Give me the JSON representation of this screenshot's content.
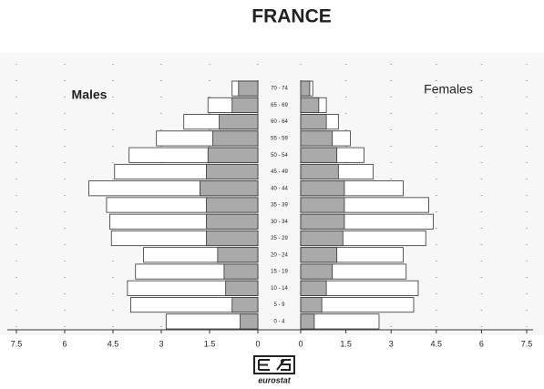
{
  "chart_data": {
    "type": "population-pyramid",
    "title": "FRANCE",
    "categories": [
      "0 - 4",
      "5 - 9",
      "10 - 14",
      "15 - 19",
      "20 - 24",
      "25 - 29",
      "30 - 34",
      "35 - 39",
      "40 - 44",
      "45 - 49",
      "50 - 54",
      "55 - 59",
      "60 - 64",
      "65 - 69",
      "70 - 74"
    ],
    "series": [
      {
        "name": "Males",
        "side": "left",
        "color": "#ffffff",
        "shaded_color": "#aaaaaa",
        "values": [
          2.85,
          3.95,
          4.05,
          3.8,
          3.55,
          4.55,
          4.6,
          4.7,
          5.25,
          4.45,
          4.0,
          3.15,
          2.3,
          1.55,
          0.8
        ],
        "shaded_values": [
          0.55,
          0.8,
          1.0,
          1.05,
          1.25,
          1.6,
          1.6,
          1.6,
          1.8,
          1.6,
          1.55,
          1.4,
          1.2,
          0.8,
          0.6
        ]
      },
      {
        "name": "Females",
        "side": "right",
        "color": "#ffffff",
        "shaded_color": "#aaaaaa",
        "values": [
          2.6,
          3.75,
          3.9,
          3.5,
          3.4,
          4.15,
          4.4,
          4.25,
          3.4,
          2.4,
          2.1,
          1.65,
          1.25,
          0.85,
          0.4
        ],
        "shaded_values": [
          0.45,
          0.7,
          0.85,
          1.05,
          1.2,
          1.4,
          1.45,
          1.45,
          1.45,
          1.25,
          1.2,
          1.05,
          0.85,
          0.6,
          0.3
        ]
      }
    ],
    "xlim": [
      0,
      7.5
    ],
    "xticks": [
      0,
      1.5,
      3,
      4.5,
      6,
      7.5
    ],
    "grid": true,
    "logo_text": "eurostat"
  }
}
